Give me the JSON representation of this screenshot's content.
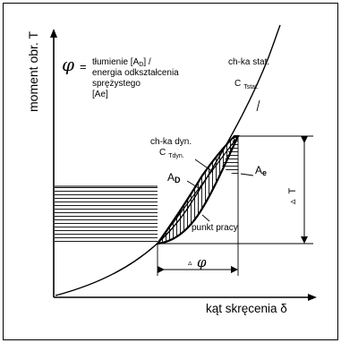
{
  "diagram": {
    "y_axis_label": "moment obr. T",
    "x_axis_label": "kąt skręcenia δ",
    "phi_symbol": "φ",
    "equals_sign": "=",
    "definition_line1_prefix": "tłumienie [A",
    "definition_line1_sub": "D",
    "definition_line1_suffix": "] /",
    "definition_line2": "energia odkształcenia",
    "definition_line3": "sprężystego",
    "definition_line4": "[Ae]",
    "static_curve_label": "ch-ka stat.",
    "static_stiffness_symbol": "C",
    "static_stiffness_subscript": "Tstat.",
    "dynamic_curve_label": "ch-ka dyn.",
    "dynamic_stiffness_symbol": "C",
    "dynamic_stiffness_subscript": "Tdyn.",
    "damping_area_symbol": "A",
    "damping_area_subscript": "D",
    "elastic_area_symbol": "A",
    "elastic_area_subscript": "e",
    "operating_point_label": "punkt pracy",
    "delta_symbol": "▵",
    "torque_amplitude_symbol": "T",
    "angle_amplitude_symbol": "φ"
  }
}
